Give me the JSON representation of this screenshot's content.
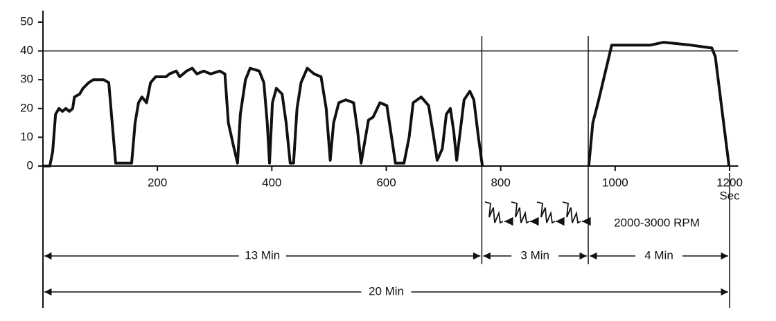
{
  "chart_data": {
    "type": "line",
    "x_label": "Sec",
    "x": [
      0,
      12,
      17,
      22,
      28,
      34,
      40,
      46,
      52,
      55,
      64,
      70,
      80,
      88,
      106,
      115,
      121,
      127,
      136,
      155,
      161,
      167,
      173,
      181,
      188,
      197,
      215,
      221,
      233,
      239,
      251,
      261,
      269,
      281,
      293,
      309,
      318,
      324,
      333,
      340,
      345,
      354,
      362,
      378,
      386,
      392,
      396,
      401,
      408,
      418,
      425,
      432,
      438,
      444,
      451,
      462,
      474,
      486,
      495,
      502,
      508,
      517,
      529,
      543,
      550,
      556,
      562,
      569,
      577,
      589,
      601,
      610,
      616,
      631,
      640,
      647,
      661,
      674,
      683,
      689,
      698,
      705,
      712,
      718,
      723,
      728,
      736,
      746,
      753,
      761,
      768,
      860,
      954,
      961,
      970,
      982,
      994,
      1013,
      1061,
      1085,
      1133,
      1169,
      1175,
      1199
    ],
    "series": [
      {
        "color": "#111111",
        "values": [
          0,
          0,
          5,
          18,
          20,
          19,
          20,
          19,
          20,
          24,
          25,
          27,
          29,
          30,
          30,
          29,
          15,
          1,
          1,
          1,
          15,
          22,
          24,
          22,
          29,
          31,
          31,
          32,
          33,
          31,
          33,
          34,
          32,
          33,
          32,
          33,
          32,
          15,
          7,
          1,
          18,
          30,
          34,
          33,
          29,
          15,
          1,
          22,
          27,
          25,
          15,
          1,
          1,
          20,
          29,
          34,
          32,
          31,
          20,
          2,
          15,
          22,
          23,
          22,
          12,
          1,
          8,
          16,
          17,
          22,
          21,
          9,
          1,
          1,
          10,
          22,
          24,
          21,
          10,
          2,
          6,
          18,
          20,
          12,
          2,
          10,
          23,
          26,
          23,
          10,
          0,
          null,
          0,
          15,
          22,
          32,
          42,
          42,
          42,
          43,
          42,
          41,
          38,
          0
        ]
      }
    ],
    "xlim": [
      0,
      1215
    ],
    "ylim": [
      0,
      54
    ],
    "xticks": [
      200,
      400,
      600,
      800,
      1000,
      1200
    ],
    "yticks": [
      0,
      10,
      20,
      30,
      40,
      50
    ],
    "hline": 40,
    "vlines": [
      767,
      953
    ],
    "annotation": "2000-3000 RPM",
    "spans": [
      {
        "label": "13 Min",
        "x": [
          0,
          767
        ]
      },
      {
        "label": "3 Min",
        "x": [
          767,
          953
        ]
      },
      {
        "label": "4 Min",
        "x": [
          953,
          1200
        ]
      },
      {
        "label": "20 Min",
        "x": [
          0,
          1200
        ]
      }
    ],
    "grid": false
  }
}
